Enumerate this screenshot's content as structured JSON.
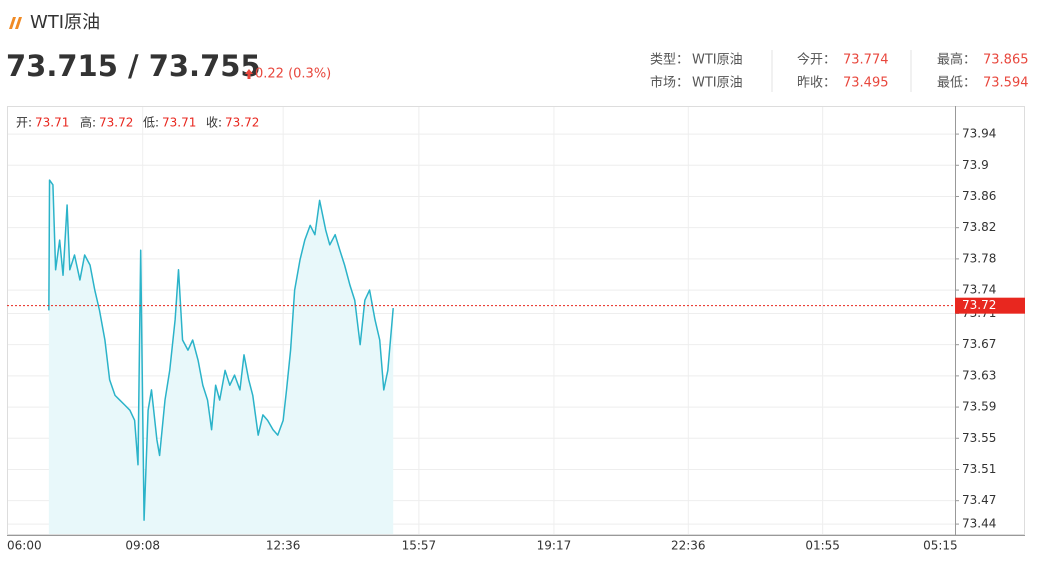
{
  "header": {
    "title": "WTI原油",
    "price": "73.715 / 73.755",
    "change": "0.22 (0.3%)",
    "info": [
      [
        {
          "label": "类型：",
          "value": "WTI原油"
        },
        {
          "label": "今开：",
          "value": 73.774
        },
        {
          "label": "最高：",
          "value": 73.865
        }
      ],
      [
        {
          "label": "市场：",
          "value": "WTI原油"
        },
        {
          "label": "昨收：",
          "value": 73.495
        },
        {
          "label": "最低：",
          "value": 73.594
        }
      ]
    ]
  },
  "chart_data": {
    "type": "line",
    "ohlc": [
      {
        "label": "开:",
        "value": 73.71
      },
      {
        "label": "高:",
        "value": 73.72
      },
      {
        "label": "低:",
        "value": 73.71
      },
      {
        "label": "收:",
        "value": 73.72
      }
    ],
    "last": 73.72,
    "last_color": "#e8271f",
    "x": [
      49,
      50,
      55,
      59,
      65,
      70,
      76,
      80,
      87,
      95,
      102,
      110,
      117,
      124,
      132,
      139,
      147,
      154,
      161,
      169,
      176,
      181,
      185,
      190,
      196,
      201,
      209,
      213,
      221,
      228,
      236,
      241,
      247,
      255,
      262,
      270,
      277,
      284,
      290,
      296,
      302,
      310,
      317,
      324,
      332,
      338,
      345,
      351,
      359,
      366,
      373,
      381,
      388,
      396,
      401,
      407,
      413,
      421,
      428,
      436,
      443,
      450,
      459,
      465,
      473,
      480,
      487,
      495,
      502,
      510,
      517,
      524,
      532,
      539,
      545,
      551,
      559
    ],
    "series": [
      {
        "name": "WTI原油",
        "color": "#2bb3c9",
        "fill": "#e8f8fa",
        "values": [
          73.714,
          73.881,
          73.875,
          73.766,
          73.804,
          73.759,
          73.849,
          73.766,
          73.785,
          73.753,
          73.785,
          73.772,
          73.74,
          73.714,
          73.676,
          73.625,
          73.605,
          73.599,
          73.593,
          73.586,
          73.573,
          73.516,
          73.791,
          73.445,
          73.586,
          73.612,
          73.548,
          73.528,
          73.599,
          73.637,
          73.702,
          73.766,
          73.676,
          73.663,
          73.676,
          73.65,
          73.618,
          73.599,
          73.561,
          73.618,
          73.599,
          73.637,
          73.618,
          73.631,
          73.612,
          73.657,
          73.625,
          73.605,
          73.554,
          73.58,
          73.573,
          73.561,
          73.554,
          73.573,
          73.612,
          73.663,
          73.74,
          73.779,
          73.804,
          73.823,
          73.811,
          73.855,
          73.817,
          73.798,
          73.811,
          73.791,
          73.772,
          73.746,
          73.727,
          73.67,
          73.727,
          73.74,
          73.702,
          73.676,
          73.612,
          73.637,
          73.717
        ]
      }
    ],
    "xlim": [
      -13,
      1391
    ],
    "xticks": [
      {
        "value": 0,
        "label": "06:00"
      },
      {
        "value": 188,
        "label": "09:08"
      },
      {
        "value": 396,
        "label": "12:36"
      },
      {
        "value": 597,
        "label": "15:57"
      },
      {
        "value": 797,
        "label": "19:17"
      },
      {
        "value": 996,
        "label": "22:36"
      },
      {
        "value": 1195,
        "label": "01:55"
      },
      {
        "value": 1395,
        "label": "05:15"
      }
    ],
    "ylim": [
      73.426,
      73.976
    ],
    "yticks": [
      73.94,
      73.9,
      73.86,
      73.82,
      73.78,
      73.74,
      73.71,
      73.67,
      73.63,
      73.59,
      73.55,
      73.51,
      73.47,
      73.44
    ],
    "grid": true
  }
}
